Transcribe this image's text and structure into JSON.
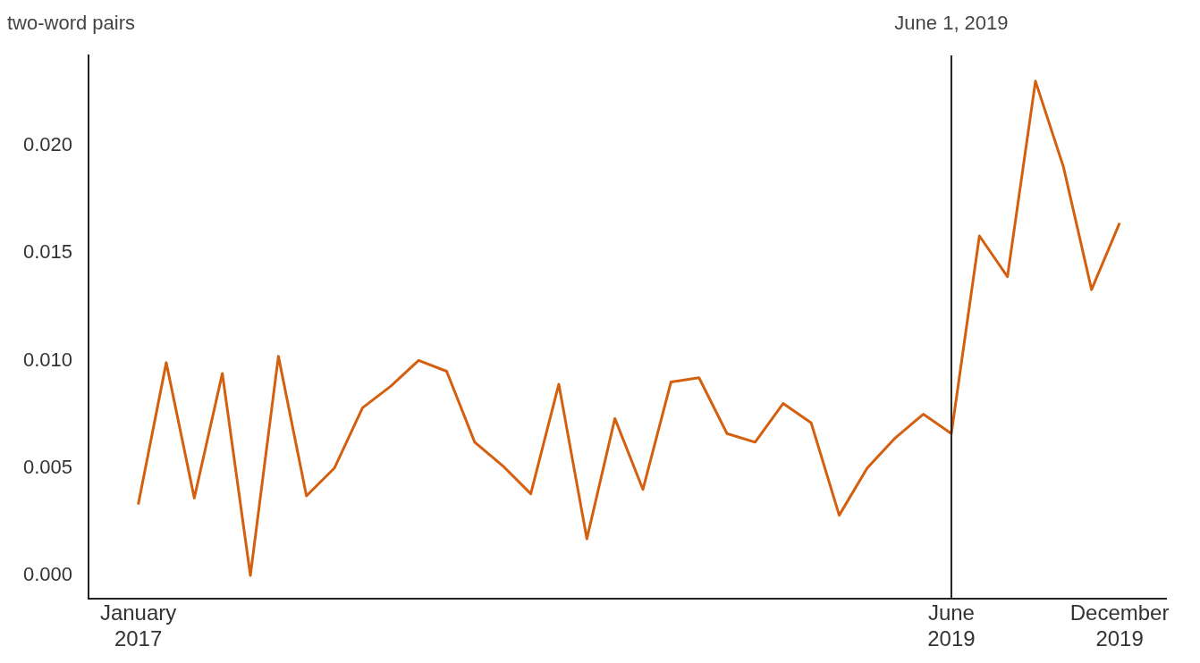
{
  "chart_data": {
    "type": "line",
    "ylabel": "two-word pairs",
    "x": [
      "2017-01",
      "2017-02",
      "2017-03",
      "2017-04",
      "2017-05",
      "2017-06",
      "2017-07",
      "2017-08",
      "2017-09",
      "2017-10",
      "2017-11",
      "2017-12",
      "2018-01",
      "2018-02",
      "2018-03",
      "2018-04",
      "2018-05",
      "2018-06",
      "2018-07",
      "2018-08",
      "2018-09",
      "2018-10",
      "2018-11",
      "2018-12",
      "2019-01",
      "2019-02",
      "2019-03",
      "2019-04",
      "2019-05",
      "2019-06",
      "2019-07",
      "2019-08",
      "2019-09",
      "2019-10",
      "2019-11",
      "2019-12"
    ],
    "series": [
      {
        "color": "#d35f0f",
        "values": [
          0.0033,
          0.0099,
          0.0036,
          0.0094,
          0.0,
          0.0102,
          0.0037,
          0.005,
          0.0078,
          0.0088,
          0.01,
          0.0095,
          0.0062,
          0.0051,
          0.0038,
          0.0089,
          0.0017,
          0.0073,
          0.004,
          0.009,
          0.0092,
          0.0066,
          0.0062,
          0.008,
          0.0071,
          0.0028,
          0.005,
          0.0064,
          0.0075,
          0.0066,
          0.0158,
          0.0139,
          0.023,
          0.019,
          0.0133,
          0.0164
        ]
      }
    ],
    "xlim": [
      "2016-11-08",
      "2020-01-21"
    ],
    "xticks": [
      {
        "value": "2017-01",
        "label": "January 2017"
      },
      {
        "value": "2019-06",
        "label": "June 2019"
      },
      {
        "value": "2019-12",
        "label": "December 2019"
      }
    ],
    "ylim": [
      -0.0011,
      0.0242
    ],
    "yticks": [
      {
        "value": 0,
        "label": "0.000"
      },
      {
        "value": 0.005,
        "label": "0.005"
      },
      {
        "value": 0.01,
        "label": "0.010"
      },
      {
        "value": 0.015,
        "label": "0.015"
      },
      {
        "value": 0.02,
        "label": "0.020"
      }
    ],
    "ref_lines": [
      {
        "axis": "x",
        "value": "2019-06",
        "label": "June 1, 2019",
        "color": "#222222"
      }
    ],
    "grid": false,
    "legend": false,
    "marker": "none",
    "line_style": "solid"
  }
}
